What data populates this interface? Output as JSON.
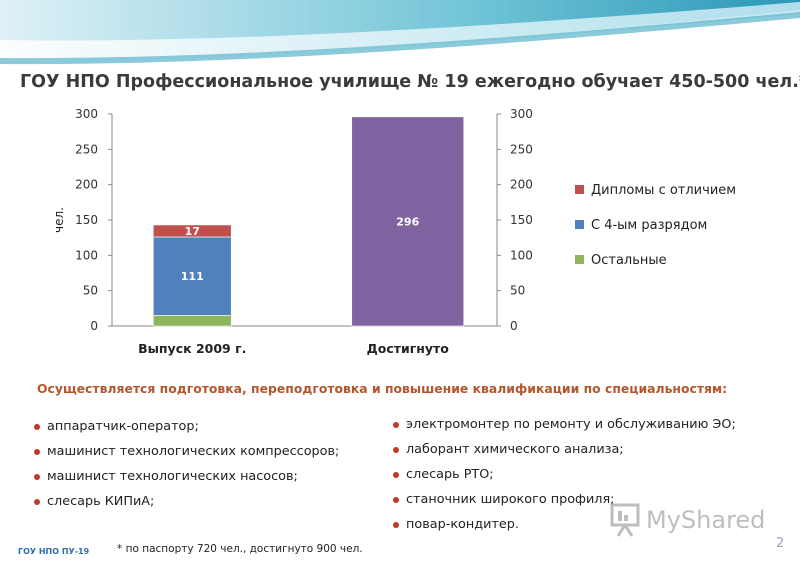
{
  "title": "ГОУ НПО Профессиональное училище № 19 ежегодно обучает 450-500 чел.*",
  "chart_data": {
    "type": "bar",
    "stacked": true,
    "categories": [
      "Выпуск 2009 г.",
      "Достигнуто"
    ],
    "series": [
      {
        "name": "Остальные",
        "color": "#8db55a",
        "values": [
          15,
          0
        ]
      },
      {
        "name": "С 4-ым разрядом",
        "color": "#4f81bd",
        "values": [
          111,
          0
        ]
      },
      {
        "name": "Дипломы с отличием",
        "color": "#c0504d",
        "values": [
          17,
          0
        ]
      },
      {
        "name": "Достигнуто",
        "color": "#8064a2",
        "values": [
          0,
          296
        ]
      }
    ],
    "data_labels": [
      {
        "category": "Выпуск 2009 г.",
        "series": "С 4-ым разрядом",
        "text": "111"
      },
      {
        "category": "Выпуск 2009 г.",
        "series": "Дипломы с отличием",
        "text": "17"
      },
      {
        "category": "Достигнуто",
        "series": "Достигнуто",
        "text": "296"
      }
    ],
    "legend": [
      "Дипломы с отличием",
      "С 4-ым разрядом",
      "Остальные"
    ],
    "ylabel": "чел.",
    "ylim": [
      0,
      300
    ],
    "yticks": [
      "0",
      "50",
      "100",
      "150",
      "200",
      "250",
      "300"
    ],
    "legend_position": "right"
  },
  "subtitle": "Осуществляется подготовка, переподготовка и повышение квалификации по специальностям:",
  "specialties_left": [
    "аппаратчик-оператор;",
    "машинист технологических компрессоров;",
    "машинист технологических насосов;",
    "слесарь  КИПиА;"
  ],
  "specialties_right": [
    "электромонтер по ремонту и обслуживанию ЭО;",
    "лаборант химического анализа;",
    "слесарь РТО;",
    "станочник широкого профиля;",
    "повар-кондитер."
  ],
  "footer_org": "ГОУ НПО ПУ-19",
  "footnote": "* по паспорту 720 чел., достигнуто 900 чел.",
  "page_number": "2",
  "watermark": "MyShared",
  "colors": {
    "title": "#3b3b3b",
    "subtitle": "#b4572c",
    "bullet": "#c0392b",
    "footer": "#2e6fa8"
  }
}
